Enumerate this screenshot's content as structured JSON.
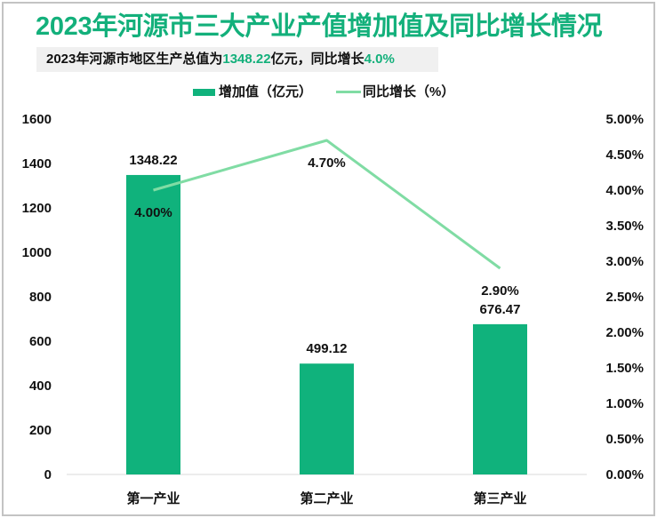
{
  "title": "2023年河源市三大产业产值增加值及同比增长情况",
  "subtitle": {
    "prefix": "2023年河源市地区生产总值为",
    "gdp_value": "1348.22",
    "middle": "亿元，同比增长",
    "growth_value": "4.0%"
  },
  "legend": [
    {
      "label": "增加值（亿元）",
      "icon": "bar-swatch"
    },
    {
      "label": "同比增长（%）",
      "icon": "line-swatch"
    }
  ],
  "colors": {
    "title": "#13b07b",
    "bar": "#10b27c",
    "line": "#80dca4",
    "highlight": "#13b07b",
    "subtitle_bg": "#f0f0f0",
    "frame_border": "#c3c3c3",
    "baseline": "#d9d9d9",
    "text": "#111111"
  },
  "chart_data": {
    "type": "bar",
    "title": "2023年河源市三大产业产值增加值及同比增长情况",
    "subtitle": "2023年河源市地区生产总值为1348.22亿元，同比增长4.0%",
    "categories": [
      "第一产业",
      "第二产业",
      "第三产业"
    ],
    "series": [
      {
        "name": "增加值（亿元）",
        "type": "bar",
        "axis": "left",
        "values": [
          1348.22,
          499.12,
          676.47
        ],
        "labels": [
          "1348.22",
          "499.12",
          "676.47"
        ]
      },
      {
        "name": "同比增长（%）",
        "type": "line",
        "axis": "right",
        "values": [
          4.0,
          4.7,
          2.9
        ],
        "labels": [
          "4.00%",
          "4.70%",
          "2.90%"
        ]
      }
    ],
    "xlabel": "",
    "ylabel": "",
    "ylim": [
      0,
      1600
    ],
    "y_left_ticks": [
      "0",
      "200",
      "400",
      "600",
      "800",
      "1000",
      "1200",
      "1400",
      "1600"
    ],
    "y2lim": [
      0,
      5
    ],
    "y_right_ticks": [
      "0.00%",
      "0.50%",
      "1.00%",
      "1.50%",
      "2.00%",
      "2.50%",
      "3.00%",
      "3.50%",
      "4.00%",
      "4.50%",
      "5.00%"
    ],
    "grid": false,
    "legend_position": "top"
  }
}
